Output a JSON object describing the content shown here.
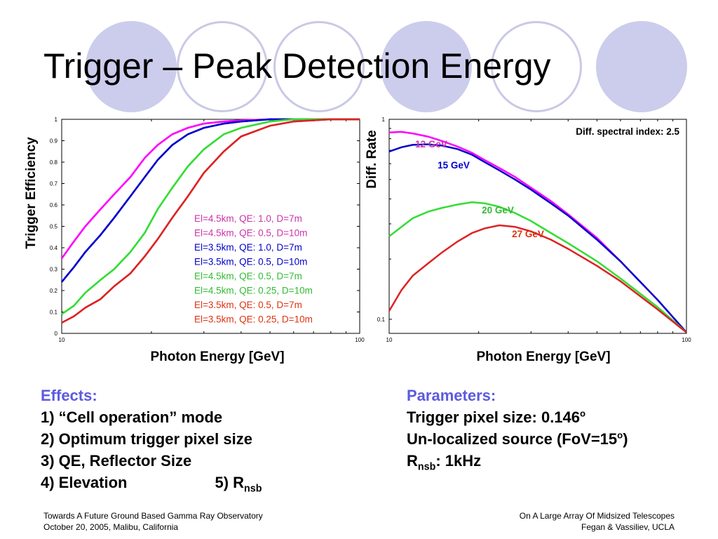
{
  "slide": {
    "title": "Trigger – Peak Detection Energy",
    "effects": {
      "heading": "Effects:",
      "item1": "1) “Cell operation” mode",
      "item2": "2) Optimum trigger pixel size",
      "item3": "3) QE, Reflector Size",
      "item4": "4) Elevation",
      "item5_prefix": "5) R",
      "item5_sub": "nsb"
    },
    "parameters": {
      "heading": "Parameters:",
      "line1": "Trigger pixel size: 0.146",
      "line1_sup": "o",
      "line2_a": "Un-localized source (FoV=15",
      "line2_sup": "o",
      "line2_b": ")",
      "line3_prefix": "R",
      "line3_sub": "nsb",
      "line3_suffix": ": 1kHz"
    },
    "footer": {
      "left1": "Towards A Future Ground Based Gamma Ray Observatory",
      "left2": "October 20, 2005, Malibu, California",
      "right1": "On A Large Array Of Midsized Telescopes",
      "right2": "Fegan & Vassiliev, UCLA"
    }
  },
  "colors": {
    "magenta": "#ff00ff",
    "blue": "#0000cc",
    "green": "#33dd33",
    "red": "#dd2222",
    "heading": "#5b5be0",
    "decor_fill": "#ccccec"
  },
  "chart_data": [
    {
      "type": "line",
      "xscale": "log",
      "xlabel": "Photon Energy [GeV]",
      "ylabel": "Trigger Efficiency",
      "xlim": [
        10,
        100
      ],
      "ylim": [
        0,
        1
      ],
      "xticks": [
        "10",
        "100"
      ],
      "yticks": [
        "0",
        "0.1",
        "0.2",
        "0.3",
        "0.4",
        "0.5",
        "0.6",
        "0.7",
        "0.8",
        "0.9",
        "1"
      ],
      "series": [
        {
          "name": "El=4.5km, QE: 1.0, D=7m",
          "color": "#cc33aa",
          "line": "#ff00ff",
          "x": [
            10,
            11,
            12,
            13.5,
            15,
            17,
            19,
            21,
            23.5,
            26.5,
            30,
            35,
            40,
            50,
            60,
            80,
            100
          ],
          "y": [
            0.35,
            0.43,
            0.5,
            0.58,
            0.65,
            0.73,
            0.82,
            0.88,
            0.93,
            0.96,
            0.98,
            0.99,
            0.995,
            1.0,
            1.0,
            1.0,
            1.0
          ]
        },
        {
          "name": "El=4.5km, QE: 0.5, D=10m",
          "color": "#cc33aa",
          "line": "#ff00ff",
          "x": [
            10,
            11,
            12,
            13.5,
            15,
            17,
            19,
            21,
            23.5,
            26.5,
            30,
            35,
            40,
            50,
            60,
            80,
            100
          ],
          "y": [
            0.35,
            0.43,
            0.5,
            0.58,
            0.65,
            0.73,
            0.82,
            0.88,
            0.93,
            0.96,
            0.98,
            0.99,
            0.995,
            1.0,
            1.0,
            1.0,
            1.0
          ]
        },
        {
          "name": "El=3.5km, QE: 1.0, D=7m",
          "color": "#0000cc",
          "line": "#0000cc",
          "x": [
            10,
            11,
            12,
            13.5,
            15,
            17,
            19,
            21,
            23.5,
            26.5,
            30,
            35,
            40,
            50,
            60,
            80,
            100
          ],
          "y": [
            0.24,
            0.31,
            0.38,
            0.46,
            0.54,
            0.64,
            0.73,
            0.81,
            0.88,
            0.93,
            0.96,
            0.98,
            0.99,
            1.0,
            1.0,
            1.0,
            1.0
          ]
        },
        {
          "name": "El=3.5km, QE: 0.5, D=10m",
          "color": "#0000cc",
          "line": "#0000cc",
          "x": [
            10,
            11,
            12,
            13.5,
            15,
            17,
            19,
            21,
            23.5,
            26.5,
            30,
            35,
            40,
            50,
            60,
            80,
            100
          ],
          "y": [
            0.24,
            0.31,
            0.38,
            0.46,
            0.54,
            0.64,
            0.73,
            0.81,
            0.88,
            0.93,
            0.96,
            0.98,
            0.99,
            1.0,
            1.0,
            1.0,
            1.0
          ]
        },
        {
          "name": "El=4.5km, QE: 0.5, D=7m",
          "color": "#33bb33",
          "line": "#33dd33",
          "x": [
            10,
            11,
            12,
            13.5,
            15,
            17,
            19,
            21,
            23.5,
            26.5,
            30,
            35,
            40,
            50,
            60,
            80,
            100
          ],
          "y": [
            0.09,
            0.13,
            0.19,
            0.25,
            0.3,
            0.38,
            0.47,
            0.58,
            0.68,
            0.78,
            0.86,
            0.93,
            0.96,
            0.99,
            1.0,
            1.0,
            1.0
          ]
        },
        {
          "name": "El=4.5km, QE: 0.25, D=10m",
          "color": "#33bb33",
          "line": "#33dd33",
          "x": [
            10,
            11,
            12,
            13.5,
            15,
            17,
            19,
            21,
            23.5,
            26.5,
            30,
            35,
            40,
            50,
            60,
            80,
            100
          ],
          "y": [
            0.09,
            0.13,
            0.19,
            0.25,
            0.3,
            0.38,
            0.47,
            0.58,
            0.68,
            0.78,
            0.86,
            0.93,
            0.96,
            0.99,
            1.0,
            1.0,
            1.0
          ]
        },
        {
          "name": "El=3.5km, QE: 0.5, D=7m",
          "color": "#dd3311",
          "line": "#dd2222",
          "x": [
            10,
            11,
            12,
            13.5,
            15,
            17,
            19,
            21,
            23.5,
            26.5,
            30,
            35,
            40,
            50,
            60,
            80,
            100
          ],
          "y": [
            0.05,
            0.08,
            0.12,
            0.16,
            0.22,
            0.28,
            0.36,
            0.44,
            0.54,
            0.64,
            0.75,
            0.85,
            0.92,
            0.97,
            0.99,
            1.0,
            1.0
          ]
        },
        {
          "name": "El=3.5km, QE: 0.25, D=10m",
          "color": "#dd3311",
          "line": "#dd2222",
          "x": [
            10,
            11,
            12,
            13.5,
            15,
            17,
            19,
            21,
            23.5,
            26.5,
            30,
            35,
            40,
            50,
            60,
            80,
            100
          ],
          "y": [
            0.05,
            0.08,
            0.12,
            0.16,
            0.22,
            0.28,
            0.36,
            0.44,
            0.54,
            0.64,
            0.75,
            0.85,
            0.92,
            0.97,
            0.99,
            1.0,
            1.0
          ]
        }
      ]
    },
    {
      "type": "line",
      "xscale": "log",
      "yscale": "log",
      "xlabel": "Photon Energy [GeV]",
      "ylabel": "Diff. Rate",
      "xlim": [
        10,
        100
      ],
      "ylim": [
        0.085,
        1
      ],
      "xticks": [
        "10",
        "100"
      ],
      "yticks": [
        "0.1",
        "1"
      ],
      "annotation": "Diff. spectral index: 2.5",
      "series": [
        {
          "name": "12 GeV",
          "color": "#cc33aa",
          "line": "#ff00ff",
          "x": [
            10,
            11,
            12,
            13.5,
            15,
            17,
            19,
            21,
            23.5,
            26.5,
            30,
            35,
            40,
            50,
            60,
            80,
            100
          ],
          "y": [
            0.86,
            0.865,
            0.85,
            0.82,
            0.78,
            0.73,
            0.68,
            0.625,
            0.57,
            0.515,
            0.455,
            0.39,
            0.335,
            0.255,
            0.195,
            0.125,
            0.086
          ]
        },
        {
          "name": "15 GeV",
          "color": "#0000cc",
          "line": "#0000cc",
          "x": [
            10,
            11,
            12,
            13.5,
            15,
            17,
            19,
            21,
            23.5,
            26.5,
            30,
            35,
            40,
            50,
            60,
            80,
            100
          ],
          "y": [
            0.69,
            0.725,
            0.745,
            0.75,
            0.74,
            0.71,
            0.665,
            0.61,
            0.555,
            0.5,
            0.445,
            0.38,
            0.33,
            0.25,
            0.195,
            0.125,
            0.086
          ]
        },
        {
          "name": "20 GeV",
          "color": "#33bb33",
          "line": "#33dd33",
          "x": [
            10,
            11,
            12,
            13.5,
            15,
            17,
            19,
            21,
            23.5,
            26.5,
            30,
            35,
            40,
            50,
            60,
            80,
            100
          ],
          "y": [
            0.26,
            0.29,
            0.32,
            0.345,
            0.36,
            0.375,
            0.385,
            0.38,
            0.365,
            0.34,
            0.31,
            0.27,
            0.24,
            0.195,
            0.16,
            0.115,
            0.086
          ]
        },
        {
          "name": "27 GeV",
          "color": "#dd3311",
          "line": "#dd2222",
          "x": [
            10,
            11,
            12,
            13.5,
            15,
            17,
            19,
            21,
            23.5,
            26.5,
            30,
            35,
            40,
            50,
            60,
            80,
            100
          ],
          "y": [
            0.11,
            0.14,
            0.165,
            0.19,
            0.215,
            0.245,
            0.27,
            0.285,
            0.295,
            0.29,
            0.275,
            0.25,
            0.225,
            0.185,
            0.155,
            0.112,
            0.086
          ]
        }
      ]
    }
  ]
}
